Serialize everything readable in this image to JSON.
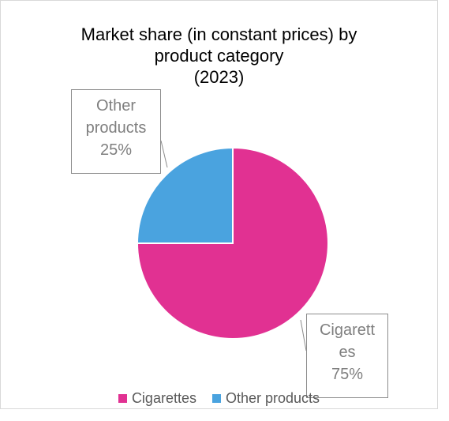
{
  "chart_data": {
    "type": "pie",
    "title_lines": [
      "Market share (in constant prices) by",
      "product category",
      "(2023)"
    ],
    "slices": [
      {
        "label": "Cigarettes",
        "value": 75,
        "color": "#e13192",
        "data_label": [
          "Cigarett",
          "es",
          "75%"
        ]
      },
      {
        "label": "Other products",
        "value": 25,
        "color": "#4aa3df",
        "data_label": [
          "Other",
          "products",
          "25%"
        ]
      }
    ],
    "legend_placement": "bottom",
    "start_angle_deg": 0,
    "direction": "clockwise"
  },
  "colors": {
    "cigarettes": "#e13192",
    "other_products": "#4aa3df",
    "callout_border": "#8c8c8c",
    "callout_text": "#7f7f7f",
    "frame_border": "#d9d9d9"
  }
}
